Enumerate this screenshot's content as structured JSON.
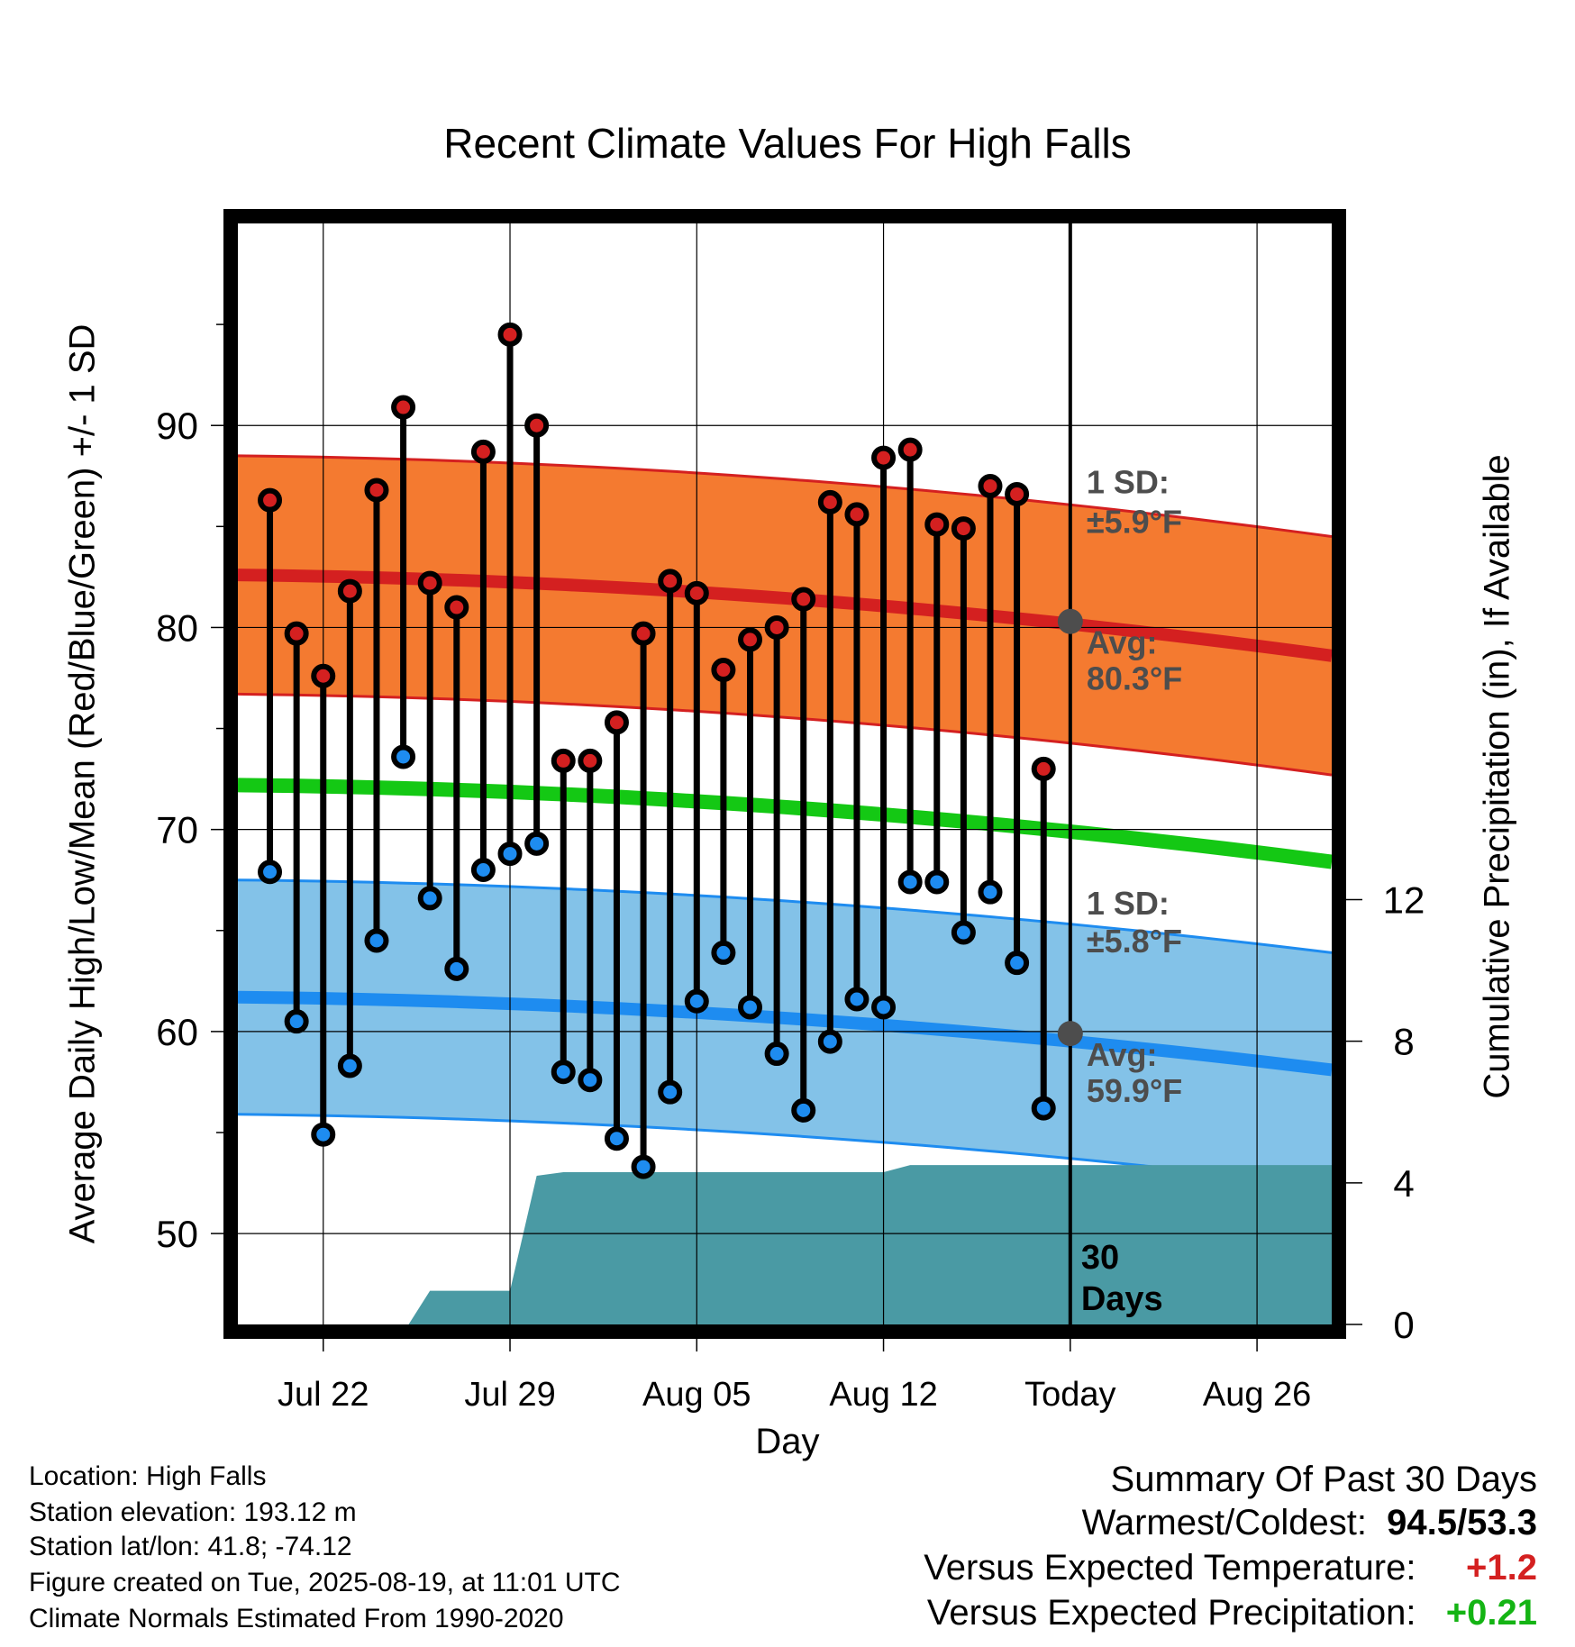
{
  "chart_data": {
    "type": "line",
    "title": "Recent Climate Values For High Falls",
    "xlabel": "Day",
    "ylabel": "Average Daily High/Low/Mean (Red/Blue/Green) +/- 1 SD",
    "y2label": "Cumulative Precipitation (in), If Available",
    "xticks": [
      {
        "day": 3,
        "label": "Jul 22"
      },
      {
        "day": 10,
        "label": "Jul 29"
      },
      {
        "day": 17,
        "label": "Aug 05"
      },
      {
        "day": 24,
        "label": "Aug 12"
      },
      {
        "day": 31,
        "label": "Today"
      },
      {
        "day": 38,
        "label": "Aug 26"
      }
    ],
    "xlim": [
      -0.2,
      40.8
    ],
    "ylim": [
      45.5,
      100
    ],
    "yticks": [
      50,
      60,
      70,
      80,
      90
    ],
    "y2lim": [
      0,
      31.1
    ],
    "y2ticks": [
      0,
      4,
      8,
      12
    ],
    "grid": true,
    "days": [
      1,
      2,
      3,
      4,
      5,
      6,
      7,
      8,
      9,
      10,
      11,
      12,
      13,
      14,
      15,
      16,
      17,
      18,
      19,
      20,
      21,
      22,
      23,
      24,
      25,
      26,
      27,
      28,
      29,
      30
    ],
    "series": [
      {
        "name": "Daily High",
        "color": "#d42020",
        "values": [
          86.3,
          79.7,
          77.6,
          81.8,
          86.8,
          90.9,
          82.2,
          81.0,
          88.7,
          94.5,
          90.0,
          73.4,
          73.4,
          75.3,
          79.7,
          82.3,
          81.7,
          77.9,
          79.4,
          80.0,
          81.4,
          86.2,
          85.6,
          88.4,
          88.8,
          85.1,
          84.9,
          87.0,
          86.6,
          73.0
        ]
      },
      {
        "name": "Daily Low",
        "color": "#1e8cf0",
        "values": [
          67.9,
          60.5,
          54.9,
          58.3,
          64.5,
          73.6,
          66.6,
          63.1,
          68.0,
          68.8,
          69.3,
          58.0,
          57.6,
          54.7,
          53.3,
          57.0,
          61.5,
          63.9,
          61.2,
          58.9,
          56.1,
          59.5,
          61.6,
          61.2,
          67.4,
          67.4,
          64.9,
          66.9,
          63.4,
          56.2
        ]
      }
    ],
    "normals": {
      "x_start": -0.2,
      "x_end": 40.8,
      "high_avg": [
        82.6,
        78.6
      ],
      "high_sd": 5.9,
      "low_avg": [
        61.7,
        58.1
      ],
      "low_sd": 5.8,
      "mean_avg": [
        72.2,
        68.4
      ],
      "high_colors": {
        "band": "#f47a30",
        "line": "#d42020"
      },
      "low_colors": {
        "band": "#83c2e8",
        "line": "#1e8cf0"
      },
      "mean_color": "#14c814"
    },
    "precip_color": "#4a9aa4",
    "precip_cumulative": [
      {
        "day": 6.2,
        "value": 0.0
      },
      {
        "day": 7.0,
        "value": 0.95
      },
      {
        "day": 10.0,
        "value": 0.95
      },
      {
        "day": 11.0,
        "value": 4.2
      },
      {
        "day": 12.0,
        "value": 4.3
      },
      {
        "day": 24.0,
        "value": 4.3
      },
      {
        "day": 25.0,
        "value": 4.5
      },
      {
        "day": 40.8,
        "value": 4.5
      }
    ],
    "today_marker": {
      "day": 31,
      "high_avg": 80.3,
      "low_avg": 59.9
    }
  },
  "annotations": {
    "high_sd": "1 SD:",
    "high_sd_value": "±5.9°F",
    "high_avg": "Avg:",
    "high_avg_value": "80.3°F",
    "low_sd": "1 SD:",
    "low_sd_value": "±5.8°F",
    "low_avg": "Avg:",
    "low_avg_value": "59.9°F",
    "window_num": "30",
    "window_unit": "Days"
  },
  "info": {
    "location": "Location: High Falls",
    "elevation": "Station elevation: 193.12 m",
    "latlon": "Station lat/lon: 41.8; -74.12",
    "created": "Figure created on Tue, 2025-08-19, at 11:01 UTC",
    "normals": "Climate Normals Estimated From 1990-2020"
  },
  "summary": {
    "title": "Summary Of Past 30 Days",
    "warm_cold_label": "Warmest/Coldest:",
    "warm_cold_value": "94.5/53.3",
    "temp_label": "Versus Expected Temperature:",
    "temp_value": "+1.2",
    "precip_label": "Versus Expected Precipitation:",
    "precip_value": "+0.21"
  }
}
